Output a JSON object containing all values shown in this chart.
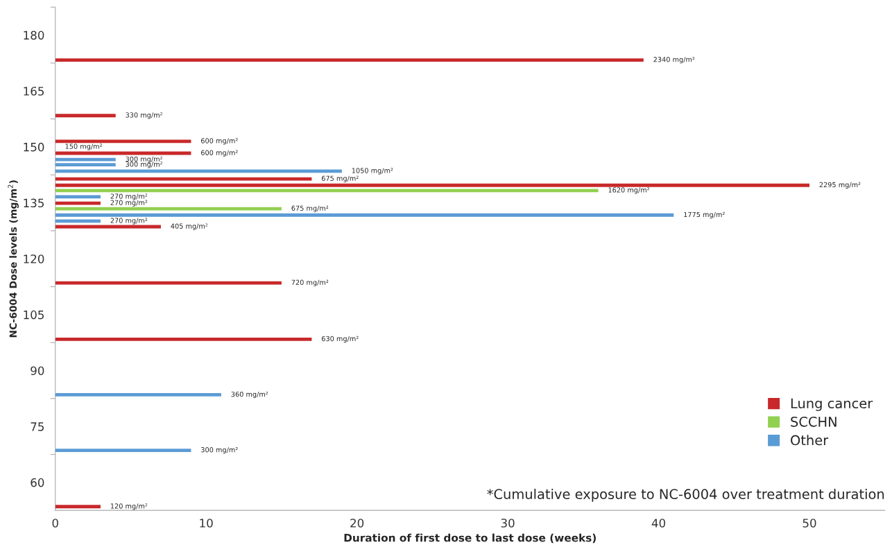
{
  "chart_data": {
    "type": "bar",
    "orientation": "horizontal",
    "xlabel": "Duration of first dose to last dose (weeks)",
    "ylabel": "NC-6004 Dose levels (mg/m$^{2}$)",
    "xlim": [
      0,
      55
    ],
    "xticks": [
      0,
      10,
      20,
      30,
      40,
      50
    ],
    "ylim": [
      52.5,
      187.5
    ],
    "yticks": [
      60,
      {
        "value": 67.5,
        "label": null
      },
      75,
      {
        "value": 82.5,
        "label": null
      },
      90,
      {
        "value": 97.5,
        "label": null
      },
      105,
      {
        "value": 112.5,
        "label": null
      },
      120,
      {
        "value": 127.5,
        "label": null
      },
      135,
      {
        "value": 142.5,
        "label": null
      },
      150,
      {
        "value": 157.5,
        "label": null
      },
      165,
      {
        "value": 172.5,
        "label": null
      },
      180,
      {
        "value": 187.5,
        "label": null
      }
    ],
    "grid": false,
    "legend": "bottom right",
    "series": [
      {
        "name": "Lung cancer",
        "color": "#c8282a",
        "x": [
          173.3,
          158.4,
          151.5,
          150,
          148.3,
          141.4,
          139.7,
          134.9,
          128.6,
          113.5,
          98.4,
          53.5
        ],
        "values": [
          39,
          4,
          9,
          0,
          9,
          17,
          50,
          3,
          7,
          15,
          17,
          3
        ]
      },
      {
        "name": "SCCHN",
        "color": "#92d050",
        "x": [
          138.3,
          133.4
        ],
        "values": [
          36,
          15
        ]
      },
      {
        "name": "Other",
        "color": "#5b9bd5",
        "x": [
          146.6,
          145.2,
          143.5,
          136.6,
          131.7,
          130.1,
          83.5,
          68.6
        ],
        "values": [
          4,
          4,
          19,
          3,
          41,
          3,
          11,
          9
        ]
      }
    ],
    "annotations": [
      {
        "text": "2340 mg/m²",
        "x": 39,
        "y": 173.3
      },
      {
        "text": "330 mg/m²",
        "x": 4,
        "y": 158.4
      },
      {
        "text": "600 mg/m²",
        "x": 9,
        "y": 151.5
      },
      {
        "text": "150 mg/m²",
        "x": 0,
        "y": 150
      },
      {
        "text": "600 mg/m²",
        "x": 9,
        "y": 148.3
      },
      {
        "text": "300 mg/m²",
        "x": 4,
        "y": 146.6
      },
      {
        "text": "300 mg/m²",
        "x": 4,
        "y": 145.2
      },
      {
        "text": "1050 mg/m²",
        "x": 19,
        "y": 143.5
      },
      {
        "text": "675 mg/m²",
        "x": 17,
        "y": 141.4
      },
      {
        "text": "2295 mg/m²",
        "x": 50,
        "y": 139.7
      },
      {
        "text": "1620 mg/m²",
        "x": 36,
        "y": 138.3
      },
      {
        "text": "270 mg/m²",
        "x": 3,
        "y": 136.6
      },
      {
        "text": "270 mg/m²",
        "x": 3,
        "y": 134.9
      },
      {
        "text": "675 mg/m²",
        "x": 15,
        "y": 133.4
      },
      {
        "text": "1775 mg/m²",
        "x": 41,
        "y": 131.7
      },
      {
        "text": "270 mg/m²",
        "x": 3,
        "y": 130.1
      },
      {
        "text": "405 mg/m²",
        "x": 7,
        "y": 128.6
      },
      {
        "text": "720 mg/m²",
        "x": 15,
        "y": 113.5
      },
      {
        "text": "630 mg/m²",
        "x": 17,
        "y": 98.4
      },
      {
        "text": "360 mg/m²",
        "x": 11,
        "y": 83.5
      },
      {
        "text": "300 mg/m²",
        "x": 9,
        "y": 68.6
      },
      {
        "text": "120 mg/m²",
        "x": 3,
        "y": 53.5
      },
      "*Cumulative exposure to NC-6004 over treatment duration"
    ]
  }
}
